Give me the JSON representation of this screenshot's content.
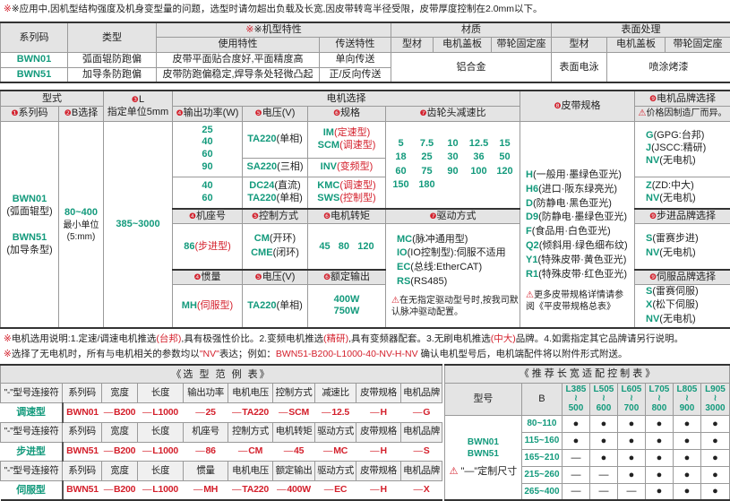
{
  "top_note": "※应用中,因机型结构强度及机身变型量的问题，选型时请勿超出负载及长宽,因皮带转弯半径受限，皮带厚度控制在2.0mm以下。",
  "series_table": {
    "h_series": "系列码",
    "h_type": "类型",
    "h_features": "※机型特性",
    "h_usage": "使用特性",
    "h_transfer": "传送特性",
    "h_material": "材质",
    "h_surface": "表面处理",
    "h_profile": "型材",
    "h_cover": "电机盖板",
    "h_seat": "带轮固定座",
    "rows": [
      {
        "code": "BWN01",
        "type": "弧面辊防跑偏",
        "usage": "皮带平面贴合度好,平面精度高",
        "transfer": "单向传送"
      },
      {
        "code": "BWN51",
        "type": "加导条防跑偏",
        "usage": "皮带防跑偏稳定,焊导条处轻微凸起",
        "transfer": "正/反向传送"
      }
    ],
    "material": "铝合金",
    "surface_profile": "表面电泳",
    "surface_other": "喷涂烤漆"
  },
  "select": {
    "h_form": "型式",
    "h_series": {
      "n": "❶",
      "t": "系列码"
    },
    "h_b": {
      "n": "❷",
      "t": "B选择"
    },
    "h_l": {
      "n": "❸",
      "t": "L"
    },
    "h_l_sub": "指定单位5mm",
    "h_motor": "电机选择",
    "h_power": {
      "n": "❹",
      "t": "输出功率(W)"
    },
    "h_voltage": {
      "n": "❺",
      "t": "电压(V)"
    },
    "h_spec": {
      "n": "❻",
      "t": "规格"
    },
    "h_gear": {
      "n": "❼",
      "t": "齿轮头减速比"
    },
    "h_belt": {
      "n": "❽",
      "t": "皮带规格"
    },
    "h_brand": {
      "n": "❾",
      "t": "电机品牌选择"
    },
    "brand_note": "价格因制造厂而异。",
    "series": [
      {
        "code": "BWN01",
        "desc": "(弧面辊型)"
      },
      {
        "code": "BWN51",
        "desc": "(加导条型)"
      }
    ],
    "b_range": "80~400",
    "b_unit": "最小单位",
    "b_unit2": "(5:mm)",
    "l_range": "385~3000",
    "power_ac": [
      "25",
      "40",
      "60",
      "90"
    ],
    "power_dc": [
      "40",
      "60"
    ],
    "v_ta": {
      "c": "TA220",
      "d": "(单相)"
    },
    "v_sa": {
      "c": "SA220",
      "d": "(三相)"
    },
    "v_dc": {
      "c": "DC24",
      "d": "(直流)"
    },
    "spec_ac": [
      {
        "c": "IM",
        "d": "(定速型)"
      },
      {
        "c": "SCM",
        "d": "(调速型)"
      }
    ],
    "spec_inv": {
      "c": "INV",
      "d": "(变频型)"
    },
    "spec_dc": [
      {
        "c": "KMC",
        "d": "(调速型)"
      },
      {
        "c": "SWS",
        "d": "(控制型)"
      }
    ],
    "gear_ratios": [
      "5",
      "7.5",
      "10",
      "12.5",
      "15",
      "18",
      "25",
      "30",
      "36",
      "50",
      "60",
      "75",
      "90",
      "100",
      "120",
      "150",
      "180"
    ],
    "h_frame": {
      "n": "❹",
      "t": "机座号"
    },
    "h_control": {
      "n": "❺",
      "t": "控制方式"
    },
    "h_torque": {
      "n": "❻",
      "t": "电机转矩"
    },
    "h_drive": {
      "n": "❼",
      "t": "驱动方式"
    },
    "frame": {
      "c": "86",
      "d": "(步进型)"
    },
    "control": [
      {
        "c": "CM",
        "d": "(开环)"
      },
      {
        "c": "CME",
        "d": "(闭环)"
      }
    ],
    "torque": "45   80   120",
    "drive": [
      {
        "c": "MC",
        "d": "(脉冲通用型)"
      },
      {
        "c": "IO",
        "d": "(IO控制型):伺服不适用"
      },
      {
        "c": "EC",
        "d": "(总线:EtherCAT)"
      },
      {
        "c": "RS",
        "d": "(RS485)"
      }
    ],
    "drive_note": "在无指定驱动型号时,按我司默认脉冲驱动配置。",
    "h_inertia": {
      "n": "❹",
      "t": "惯量"
    },
    "h_voltage2": {
      "n": "❺",
      "t": "电压(V)"
    },
    "h_rated": {
      "n": "❻",
      "t": "额定输出"
    },
    "inertia": {
      "c": "MH",
      "d": "(伺服型)"
    },
    "rated": [
      "400W",
      "750W"
    ],
    "belts": [
      {
        "c": "H",
        "d": "(一般用·墨绿色亚光)"
      },
      {
        "c": "H6",
        "d": "(进口·阪东绿亮光)"
      },
      {
        "c": "D",
        "d": "(防静电·黑色亚光)"
      },
      {
        "c": "D9",
        "d": "(防静电·墨绿色亚光)"
      },
      {
        "c": "F",
        "d": "(食品用·白色亚光)"
      },
      {
        "c": "Q2",
        "d": "(倾斜用·绿色细布纹)"
      },
      {
        "c": "Y1",
        "d": "(特殊皮带·黄色亚光)"
      },
      {
        "c": "R1",
        "d": "(特殊皮带·红色亚光)"
      }
    ],
    "belt_note": "更多皮带规格详情请参阅《平皮带规格总表》",
    "brand_ac": [
      {
        "c": "G",
        "d": "(GPG:台邦)"
      },
      {
        "c": "J",
        "d": "(JSCC:精研)"
      },
      {
        "c": "NV",
        "d": "(无电机)"
      }
    ],
    "brand_dc": [
      {
        "c": "Z",
        "d": "(ZD:中大)"
      },
      {
        "c": "NV",
        "d": "(无电机)"
      }
    ],
    "h_step_brand": {
      "n": "❾",
      "t": "步进品牌选择"
    },
    "brand_step": [
      {
        "c": "S",
        "d": "(雷赛步进)"
      },
      {
        "c": "NV",
        "d": "(无电机)"
      }
    ],
    "h_servo_brand": {
      "n": "❾",
      "t": "伺服品牌选择"
    },
    "brand_servo": [
      {
        "c": "S",
        "d": "(雷赛伺服)"
      },
      {
        "c": "X",
        "d": "(松下伺服)"
      },
      {
        "c": "NV",
        "d": "(无电机)"
      }
    ]
  },
  "notes": {
    "n1": [
      {
        "t": "※",
        "r": true
      },
      {
        "t": "电机选用说明:1.定速/调速电机推选"
      },
      {
        "t": "(台邦)",
        "r": true
      },
      {
        "t": ",具有极强性价比。2.变频电机推选"
      },
      {
        "t": "(精研)",
        "r": true
      },
      {
        "t": ",具有变频器配套。3.无刷电机推选"
      },
      {
        "t": "(中大)",
        "r": true
      },
      {
        "t": "品牌。4.如需指定其它品牌请另行说明。"
      }
    ],
    "n2": [
      {
        "t": "※",
        "r": true
      },
      {
        "t": "选择了无电机时，所有与电机相关的参数均以"
      },
      {
        "t": "\"NV\"",
        "r": true
      },
      {
        "t": "表达；例如："
      },
      {
        "t": "BWN51-B200-L1000-40-NV-H-NV",
        "r": true
      },
      {
        "t": "  确认电机型号后，电机端配件将以附件形式附送。"
      }
    ]
  },
  "example": {
    "title": "《选 型 范 例 表》",
    "sep": "—",
    "blocks": [
      {
        "headers": [
          "\"-\"型号连接符",
          "系列码",
          "宽度",
          "长度",
          "输出功率",
          "电机电压",
          "控制方式",
          "减速比",
          "皮带规格",
          "电机品牌"
        ],
        "label": "调速型",
        "values": [
          "BWN01",
          "B200",
          "L1000",
          "25",
          "TA220",
          "SCM",
          "12.5",
          "H",
          "G"
        ]
      },
      {
        "headers": [
          "\"-\"型号连接符",
          "系列码",
          "宽度",
          "长度",
          "机座号",
          "控制方式",
          "电机转矩",
          "驱动方式",
          "皮带规格",
          "电机品牌"
        ],
        "label": "步进型",
        "values": [
          "BWN51",
          "B200",
          "L1000",
          "86",
          "CM",
          "45",
          "MC",
          "H",
          "S"
        ]
      },
      {
        "headers": [
          "\"-\"型号连接符",
          "系列码",
          "宽度",
          "长度",
          "惯量",
          "电机电压",
          "额定输出",
          "驱动方式",
          "皮带规格",
          "电机品牌"
        ],
        "label": "伺服型",
        "values": [
          "BWN51",
          "B200",
          "L1000",
          "MH",
          "TA220",
          "400W",
          "EC",
          "H",
          "X"
        ]
      }
    ]
  },
  "recommend": {
    "title": "《 推 荐 长 宽 适 配 控 制 表 》",
    "h_model": "型号",
    "h_b": "B",
    "l_ranges": [
      [
        "L385",
        "500"
      ],
      [
        "L505",
        "600"
      ],
      [
        "L605",
        "700"
      ],
      [
        "L705",
        "800"
      ],
      [
        "L805",
        "900"
      ],
      [
        "L905",
        "3000"
      ]
    ],
    "models": [
      "BWN01",
      "BWN51"
    ],
    "note": "\"—\"定制尺寸",
    "rows": [
      {
        "b": "80~110",
        "v": [
          "●",
          "●",
          "●",
          "●",
          "●",
          "●"
        ]
      },
      {
        "b": "115~160",
        "v": [
          "●",
          "●",
          "●",
          "●",
          "●",
          "●"
        ]
      },
      {
        "b": "165~210",
        "v": [
          "—",
          "●",
          "●",
          "●",
          "●",
          "●"
        ]
      },
      {
        "b": "215~260",
        "v": [
          "—",
          "—",
          "●",
          "●",
          "●",
          "●"
        ]
      },
      {
        "b": "265~400",
        "v": [
          "—",
          "—",
          "—",
          "●",
          "●",
          "●"
        ]
      }
    ]
  },
  "colors": {
    "accent_green": "#139a7c",
    "accent_red": "#d4202c",
    "header_bg": "#e4e4e4"
  }
}
